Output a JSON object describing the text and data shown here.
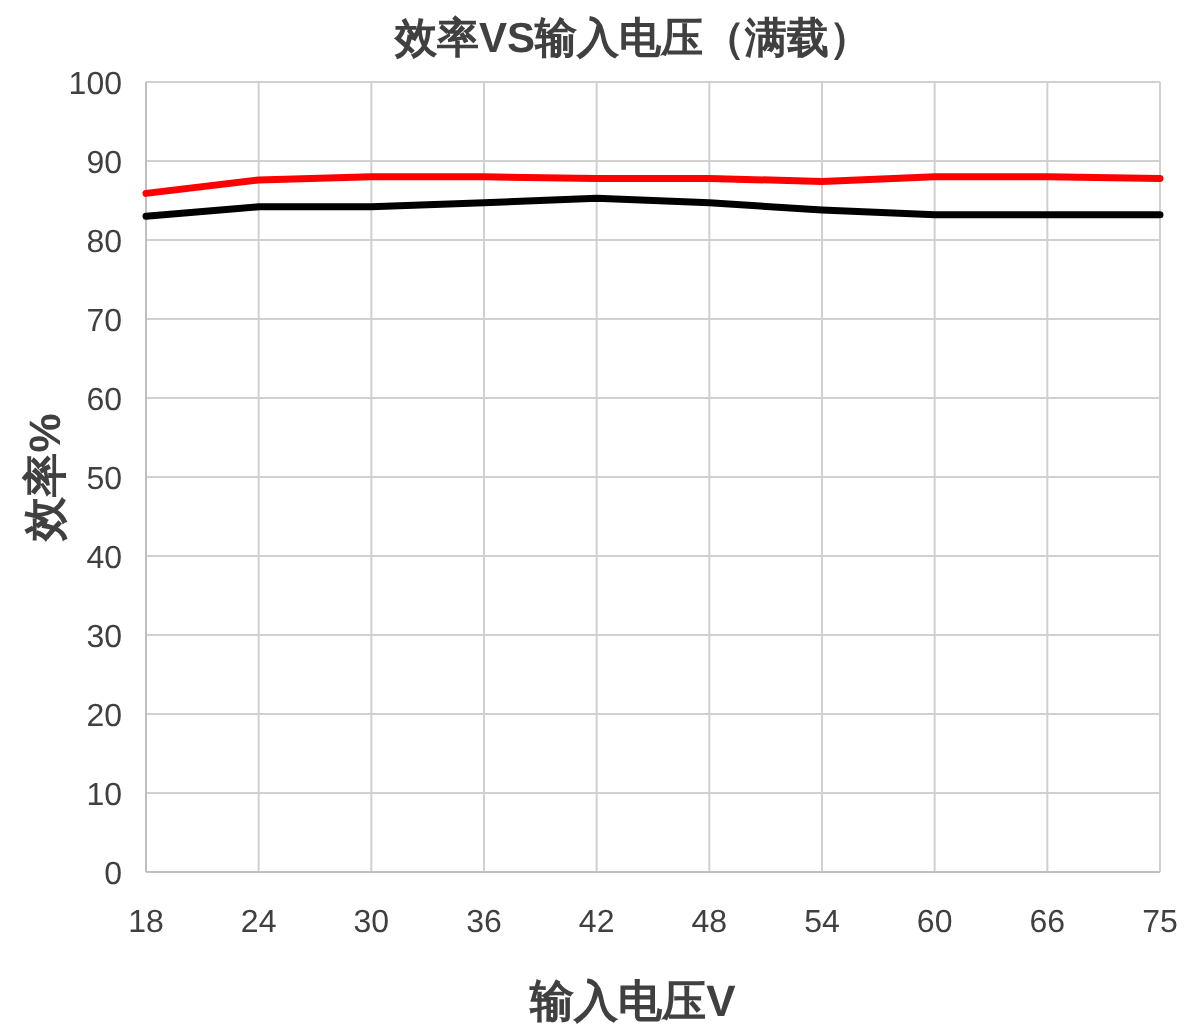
{
  "chart_data": {
    "type": "line",
    "title": "效率VS输入电压（满载）",
    "xlabel": "输入电压V",
    "ylabel": "效率%",
    "categories": [
      "18",
      "24",
      "30",
      "36",
      "42",
      "48",
      "54",
      "60",
      "66",
      "75"
    ],
    "series": [
      {
        "color": "#000000",
        "values": [
          83.0,
          84.2,
          84.2,
          84.7,
          85.3,
          84.7,
          83.8,
          83.2,
          83.2,
          83.2
        ]
      },
      {
        "color": "#ff0000",
        "values": [
          85.9,
          87.6,
          88.0,
          88.0,
          87.8,
          87.8,
          87.4,
          88.0,
          88.0,
          87.8
        ]
      }
    ],
    "ylim": [
      0,
      100
    ],
    "yticks": [
      0,
      10,
      20,
      30,
      40,
      50,
      60,
      70,
      80,
      90,
      100
    ],
    "grid": true,
    "marker": "none",
    "line_style": "solid"
  }
}
